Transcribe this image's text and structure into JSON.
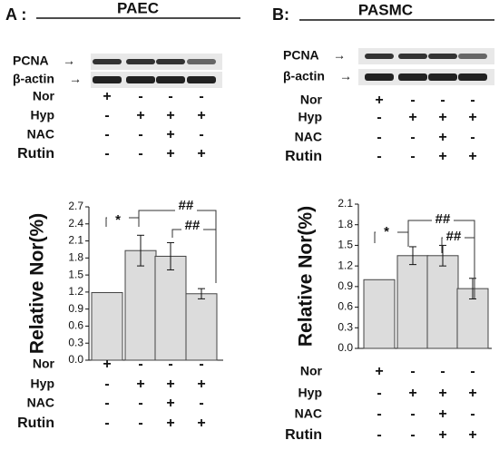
{
  "chart_data": [
    {
      "type": "bar",
      "panel": "A :",
      "title": "PAEC",
      "blot_labels": [
        "PCNA",
        "β-actin"
      ],
      "blot_conditions": [
        {
          "label": "Nor",
          "marks": [
            "+",
            "-",
            "-",
            "-"
          ]
        },
        {
          "label": "Hyp",
          "marks": [
            "-",
            "+",
            "+",
            "+"
          ]
        },
        {
          "label": "NAC",
          "marks": [
            "-",
            "-",
            "+",
            "-"
          ]
        },
        {
          "label": "Rutin",
          "marks": [
            "-",
            "-",
            "+",
            "+"
          ]
        }
      ],
      "ylabel": "Relative Nor(%)",
      "values": [
        1.19,
        1.93,
        1.83,
        1.17
      ],
      "errors": [
        null,
        0.27,
        0.24,
        0.09
      ],
      "color": "#dcdcdc",
      "ylim": [
        0,
        2.7
      ],
      "yticks": [
        {
          "value": 0,
          "label": "0.0"
        },
        0.3,
        0.6,
        0.9,
        1.2,
        1.5,
        1.8,
        2.1,
        2.4,
        2.7
      ],
      "annotations": [
        "*",
        "##",
        "##"
      ],
      "conditions": [
        {
          "label": "Nor",
          "marks": [
            "+",
            "-",
            "-",
            "-"
          ]
        },
        {
          "label": "Hyp",
          "marks": [
            "-",
            "+",
            "+",
            "+"
          ]
        },
        {
          "label": "NAC",
          "marks": [
            "-",
            "-",
            "+",
            "-"
          ]
        },
        {
          "label": "Rutin",
          "marks": [
            "-",
            "-",
            "+",
            "+"
          ]
        }
      ]
    },
    {
      "type": "bar",
      "panel": "B:",
      "title": "PASMC",
      "blot_labels": [
        "PCNA",
        "β-actin"
      ],
      "blot_conditions": [
        {
          "label": "Nor",
          "marks": [
            "+",
            "-",
            "-",
            "-"
          ]
        },
        {
          "label": "Hyp",
          "marks": [
            "-",
            "+",
            "+",
            "+"
          ]
        },
        {
          "label": "NAC",
          "marks": [
            "-",
            "-",
            "+",
            "-"
          ]
        },
        {
          "label": "Rutin",
          "marks": [
            "-",
            "-",
            "+",
            "+"
          ]
        }
      ],
      "ylabel": "Relative Nor(%)",
      "values": [
        1.0,
        1.35,
        1.35,
        0.87
      ],
      "errors": [
        null,
        0.13,
        0.15,
        0.15
      ],
      "color": "#dcdcdc",
      "ylim": [
        0,
        2.1
      ],
      "yticks": [
        {
          "value": 0,
          "label": "0.0"
        },
        0.3,
        0.6,
        0.9,
        1.2,
        1.5,
        1.8,
        2.1
      ],
      "annotations": [
        "*",
        "##",
        "##"
      ],
      "conditions": [
        {
          "label": "Nor",
          "marks": [
            "+",
            "-",
            "-",
            "-"
          ]
        },
        {
          "label": "Hyp",
          "marks": [
            "-",
            "+",
            "+",
            "+"
          ]
        },
        {
          "label": "NAC",
          "marks": [
            "-",
            "-",
            "+",
            "-"
          ]
        },
        {
          "label": "Rutin",
          "marks": [
            "-",
            "-",
            "+",
            "+"
          ]
        }
      ]
    }
  ]
}
